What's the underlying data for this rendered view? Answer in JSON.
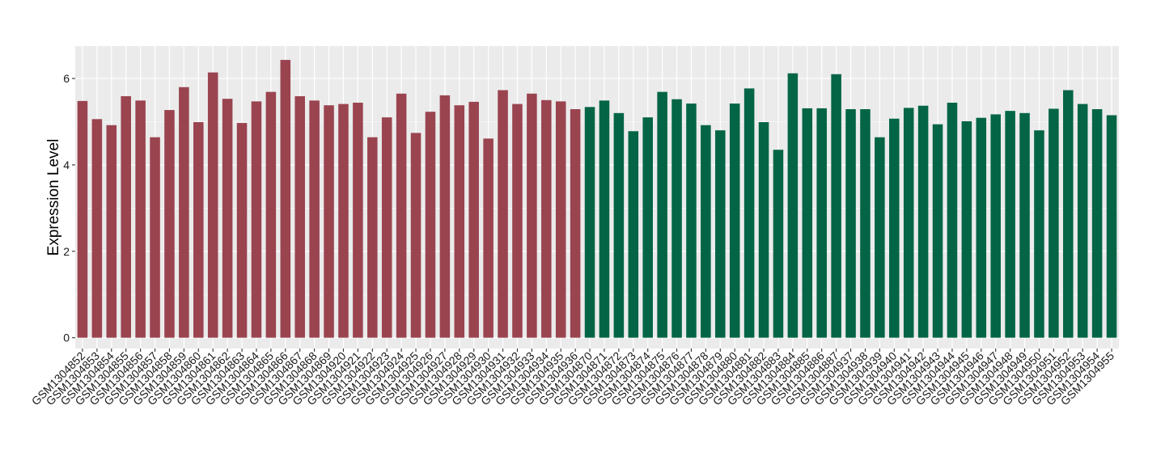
{
  "chart_data": {
    "type": "bar",
    "title": "",
    "xlabel": "",
    "ylabel": "Expression Level",
    "ylim": [
      -0.25,
      6.75
    ],
    "yticks": [
      0,
      2,
      4,
      6
    ],
    "grid": true,
    "legend": "none",
    "colors": {
      "group1": "#9a4450",
      "group2": "#046546",
      "panel": "#ebebeb",
      "gridline": "#ffffff"
    },
    "categories": [
      "GSM1304852",
      "GSM1304853",
      "GSM1304854",
      "GSM1304855",
      "GSM1304856",
      "GSM1304857",
      "GSM1304858",
      "GSM1304859",
      "GSM1304860",
      "GSM1304861",
      "GSM1304862",
      "GSM1304863",
      "GSM1304864",
      "GSM1304865",
      "GSM1304866",
      "GSM1304867",
      "GSM1304868",
      "GSM1304869",
      "GSM1304920",
      "GSM1304921",
      "GSM1304922",
      "GSM1304923",
      "GSM1304924",
      "GSM1304925",
      "GSM1304926",
      "GSM1304927",
      "GSM1304928",
      "GSM1304929",
      "GSM1304930",
      "GSM1304931",
      "GSM1304932",
      "GSM1304933",
      "GSM1304934",
      "GSM1304935",
      "GSM1304936",
      "GSM1304870",
      "GSM1304871",
      "GSM1304872",
      "GSM1304873",
      "GSM1304874",
      "GSM1304875",
      "GSM1304876",
      "GSM1304877",
      "GSM1304878",
      "GSM1304879",
      "GSM1304880",
      "GSM1304881",
      "GSM1304882",
      "GSM1304883",
      "GSM1304884",
      "GSM1304885",
      "GSM1304886",
      "GSM1304887",
      "GSM1304937",
      "GSM1304938",
      "GSM1304939",
      "GSM1304940",
      "GSM1304941",
      "GSM1304942",
      "GSM1304943",
      "GSM1304944",
      "GSM1304945",
      "GSM1304946",
      "GSM1304947",
      "GSM1304948",
      "GSM1304949",
      "GSM1304950",
      "GSM1304951",
      "GSM1304952",
      "GSM1304953",
      "GSM1304954",
      "GSM1304955"
    ],
    "values": [
      5.48,
      5.06,
      4.92,
      5.59,
      5.49,
      4.64,
      5.27,
      5.8,
      4.99,
      6.14,
      5.53,
      4.97,
      5.47,
      5.69,
      6.43,
      5.59,
      5.49,
      5.38,
      5.41,
      5.44,
      4.64,
      5.1,
      5.65,
      4.74,
      5.23,
      5.61,
      5.38,
      5.46,
      4.61,
      5.73,
      5.41,
      5.65,
      5.5,
      5.47,
      5.29,
      5.34,
      5.49,
      5.2,
      4.78,
      5.1,
      5.69,
      5.52,
      5.42,
      4.92,
      4.8,
      5.42,
      5.77,
      4.99,
      4.35,
      6.12,
      5.31,
      5.31,
      6.1,
      5.29,
      5.29,
      4.64,
      5.07,
      5.32,
      5.37,
      4.94,
      5.44,
      5.01,
      5.09,
      5.17,
      5.25,
      5.2,
      4.8,
      5.3,
      5.73,
      5.41,
      5.29,
      5.15
    ],
    "groups": [
      1,
      1,
      1,
      1,
      1,
      1,
      1,
      1,
      1,
      1,
      1,
      1,
      1,
      1,
      1,
      1,
      1,
      1,
      1,
      1,
      1,
      1,
      1,
      1,
      1,
      1,
      1,
      1,
      1,
      1,
      1,
      1,
      1,
      1,
      1,
      2,
      2,
      2,
      2,
      2,
      2,
      2,
      2,
      2,
      2,
      2,
      2,
      2,
      2,
      2,
      2,
      2,
      2,
      2,
      2,
      2,
      2,
      2,
      2,
      2,
      2,
      2,
      2,
      2,
      2,
      2,
      2,
      2,
      2,
      2,
      2,
      2
    ]
  }
}
